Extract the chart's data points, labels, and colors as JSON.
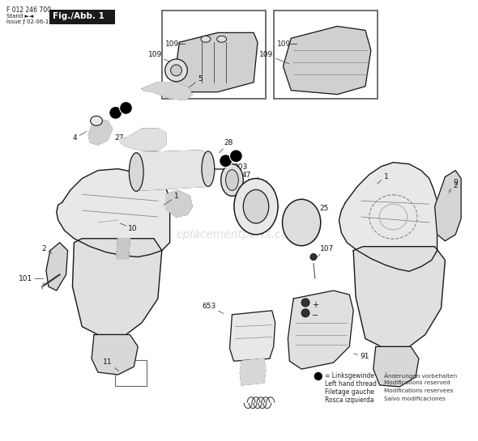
{
  "bg_color": "#ffffff",
  "header_text": "F 012 246 700",
  "stand_line": "Stand ►◄",
  "issue_line": "Issue ƒ 02-06-10",
  "fig_label": "Fig./Abb. 1",
  "watermark": "eplacementparts.com",
  "legend_lines": [
    "= Linksgewinde",
    "Left hand thread",
    "Filetage gauche",
    "Rosca izquierda"
  ],
  "rights_lines": [
    "Änderungen vorbehalten",
    "Modifications reserved",
    "Modifications reservees",
    "Salvo modificaciones"
  ],
  "line_color": "#1a1a1a",
  "part_color": "#1a1a1a"
}
